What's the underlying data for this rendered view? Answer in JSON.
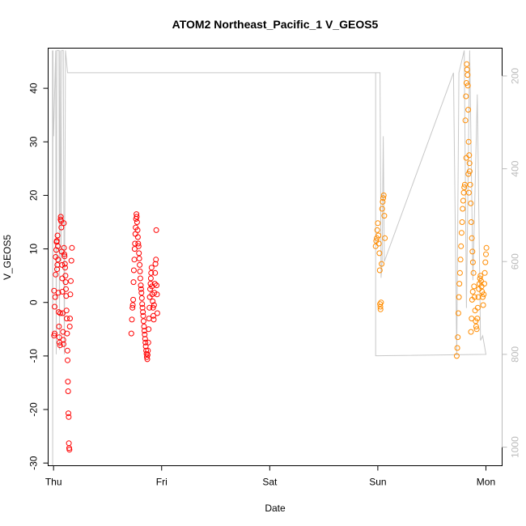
{
  "chart_data": {
    "type": "scatter",
    "title": "ATOM2 Northeast_Pacific_1 V_GEOS5",
    "xlabel": "Date",
    "ylabel": "V_GEOS5",
    "xlim": [
      -0.05,
      4.15
    ],
    "ylim": [
      -30.5,
      47.5
    ],
    "x_ticks": [
      {
        "value": 0,
        "label": "Thu"
      },
      {
        "value": 1,
        "label": "Fri"
      },
      {
        "value": 2,
        "label": "Sat"
      },
      {
        "value": 3,
        "label": "Sun"
      },
      {
        "value": 4,
        "label": "Mon"
      }
    ],
    "y_ticks": [
      -30,
      -20,
      -10,
      0,
      10,
      20,
      30,
      40
    ],
    "y2_ticks": [
      200,
      400,
      600,
      800,
      1000
    ],
    "y2lim": [
      1040,
      140
    ],
    "colors": {
      "red": "#ff0000",
      "orange": "#ff8c00",
      "line": "#c8c8c8",
      "axis2": "#bbbbbb"
    },
    "series": [
      {
        "color": "#ff0000",
        "points": [
          [
            0.005,
            2.2
          ],
          [
            0.005,
            -6.2
          ],
          [
            0.01,
            -5.8
          ],
          [
            0.01,
            -0.8
          ],
          [
            0.015,
            1.0
          ],
          [
            0.02,
            5.2
          ],
          [
            0.02,
            8.5
          ],
          [
            0.025,
            9.8
          ],
          [
            0.028,
            11.3
          ],
          [
            0.03,
            11.5
          ],
          [
            0.032,
            6.2
          ],
          [
            0.035,
            7.0
          ],
          [
            0.037,
            12.5
          ],
          [
            0.04,
            10.5
          ],
          [
            0.042,
            8.0
          ],
          [
            0.045,
            1.8
          ],
          [
            0.047,
            -1.8
          ],
          [
            0.05,
            -4.5
          ],
          [
            0.052,
            -6.5
          ],
          [
            0.055,
            -7.5
          ],
          [
            0.06,
            -8.0
          ],
          [
            0.062,
            -2.0
          ],
          [
            0.065,
            15.5
          ],
          [
            0.067,
            16.0
          ],
          [
            0.07,
            15.2
          ],
          [
            0.072,
            14.0
          ],
          [
            0.075,
            9.5
          ],
          [
            0.078,
            7.0
          ],
          [
            0.08,
            4.5
          ],
          [
            0.082,
            2.0
          ],
          [
            0.085,
            -2.0
          ],
          [
            0.087,
            -5.5
          ],
          [
            0.09,
            -7.0
          ],
          [
            0.092,
            -7.8
          ],
          [
            0.095,
            14.8
          ],
          [
            0.097,
            10.2
          ],
          [
            0.1,
            9.0
          ],
          [
            0.102,
            8.6
          ],
          [
            0.105,
            7.2
          ],
          [
            0.107,
            6.5
          ],
          [
            0.11,
            5.0
          ],
          [
            0.112,
            3.8
          ],
          [
            0.115,
            2.5
          ],
          [
            0.117,
            1.2
          ],
          [
            0.12,
            -1.5
          ],
          [
            0.122,
            -3.0
          ],
          [
            0.125,
            -5.8
          ],
          [
            0.128,
            -9.0
          ],
          [
            0.13,
            -10.8
          ],
          [
            0.133,
            -14.8
          ],
          [
            0.135,
            -16.6
          ],
          [
            0.137,
            -20.7
          ],
          [
            0.14,
            -21.4
          ],
          [
            0.142,
            -26.3
          ],
          [
            0.145,
            -27.2
          ],
          [
            0.147,
            -27.5
          ],
          [
            0.15,
            -4.5
          ],
          [
            0.152,
            -3.0
          ],
          [
            0.155,
            1.5
          ],
          [
            0.16,
            4.0
          ],
          [
            0.165,
            7.8
          ],
          [
            0.17,
            10.2
          ],
          [
            0.72,
            -5.8
          ],
          [
            0.725,
            -3.2
          ],
          [
            0.73,
            -1.0
          ],
          [
            0.733,
            -0.5
          ],
          [
            0.737,
            0.5
          ],
          [
            0.74,
            3.8
          ],
          [
            0.743,
            6.0
          ],
          [
            0.747,
            8.0
          ],
          [
            0.75,
            10.0
          ],
          [
            0.753,
            11.0
          ],
          [
            0.757,
            12.8
          ],
          [
            0.76,
            14.0
          ],
          [
            0.763,
            15.6
          ],
          [
            0.767,
            16.5
          ],
          [
            0.77,
            16.0
          ],
          [
            0.773,
            15.0
          ],
          [
            0.777,
            13.5
          ],
          [
            0.78,
            12.2
          ],
          [
            0.783,
            11.0
          ],
          [
            0.787,
            10.5
          ],
          [
            0.79,
            9.2
          ],
          [
            0.793,
            8.2
          ],
          [
            0.797,
            7.0
          ],
          [
            0.8,
            5.8
          ],
          [
            0.803,
            4.5
          ],
          [
            0.807,
            3.2
          ],
          [
            0.81,
            2.5
          ],
          [
            0.813,
            1.8
          ],
          [
            0.817,
            0.8
          ],
          [
            0.82,
            -0.3
          ],
          [
            0.823,
            -1.0
          ],
          [
            0.827,
            -1.8
          ],
          [
            0.83,
            -2.5
          ],
          [
            0.833,
            -3.5
          ],
          [
            0.837,
            -4.5
          ],
          [
            0.84,
            -5.3
          ],
          [
            0.843,
            -6.0
          ],
          [
            0.847,
            -6.8
          ],
          [
            0.85,
            -7.5
          ],
          [
            0.853,
            -8.2
          ],
          [
            0.857,
            -9.0
          ],
          [
            0.86,
            -9.6
          ],
          [
            0.863,
            -10.2
          ],
          [
            0.867,
            -10.6
          ],
          [
            0.87,
            -9.8
          ],
          [
            0.873,
            -9.0
          ],
          [
            0.877,
            -7.5
          ],
          [
            0.88,
            -5.0
          ],
          [
            0.883,
            -3.0
          ],
          [
            0.887,
            -1.0
          ],
          [
            0.89,
            1.0
          ],
          [
            0.893,
            2.5
          ],
          [
            0.897,
            3.5
          ],
          [
            0.9,
            4.5
          ],
          [
            0.903,
            5.5
          ],
          [
            0.907,
            6.5
          ],
          [
            0.91,
            3.0
          ],
          [
            0.913,
            1.5
          ],
          [
            0.917,
            0.2
          ],
          [
            0.92,
            -1.0
          ],
          [
            0.923,
            -2.5
          ],
          [
            0.927,
            -3.2
          ],
          [
            0.93,
            -0.5
          ],
          [
            0.933,
            1.8
          ],
          [
            0.937,
            3.5
          ],
          [
            0.94,
            5.5
          ],
          [
            0.943,
            7.2
          ],
          [
            0.947,
            8.0
          ],
          [
            0.95,
            13.5
          ],
          [
            0.953,
            3.2
          ],
          [
            0.957,
            1.5
          ],
          [
            0.96,
            -2.0
          ]
        ]
      },
      {
        "color": "#ff8c00",
        "points": [
          [
            2.98,
            10.5
          ],
          [
            2.985,
            11.5
          ],
          [
            2.99,
            12.0
          ],
          [
            2.995,
            13.5
          ],
          [
            3.0,
            14.8
          ],
          [
            3.005,
            12.5
          ],
          [
            3.01,
            11.0
          ],
          [
            3.015,
            9.2
          ],
          [
            3.018,
            6.0
          ],
          [
            3.02,
            -0.3
          ],
          [
            3.023,
            -0.8
          ],
          [
            3.025,
            -1.3
          ],
          [
            3.03,
            0.0
          ],
          [
            3.035,
            7.2
          ],
          [
            3.04,
            17.5
          ],
          [
            3.045,
            18.8
          ],
          [
            3.05,
            19.5
          ],
          [
            3.055,
            20.0
          ],
          [
            3.06,
            16.2
          ],
          [
            3.065,
            12.0
          ],
          [
            3.73,
            -10.0
          ],
          [
            3.735,
            -8.5
          ],
          [
            3.74,
            -6.5
          ],
          [
            3.745,
            -2.0
          ],
          [
            3.75,
            1.0
          ],
          [
            3.755,
            3.5
          ],
          [
            3.76,
            5.5
          ],
          [
            3.765,
            8.0
          ],
          [
            3.77,
            10.5
          ],
          [
            3.775,
            13.0
          ],
          [
            3.78,
            15.0
          ],
          [
            3.785,
            17.5
          ],
          [
            3.79,
            19.0
          ],
          [
            3.795,
            20.5
          ],
          [
            3.8,
            21.5
          ],
          [
            3.805,
            22.0
          ],
          [
            3.81,
            34.0
          ],
          [
            3.815,
            38.5
          ],
          [
            3.82,
            41.0
          ],
          [
            3.823,
            44.5
          ],
          [
            3.826,
            43.5
          ],
          [
            3.83,
            42.5
          ],
          [
            3.833,
            40.5
          ],
          [
            3.836,
            36.0
          ],
          [
            3.84,
            30.0
          ],
          [
            3.845,
            27.5
          ],
          [
            3.85,
            24.5
          ],
          [
            3.855,
            22.0
          ],
          [
            3.86,
            18.5
          ],
          [
            3.865,
            15.0
          ],
          [
            3.87,
            12.0
          ],
          [
            3.875,
            9.5
          ],
          [
            3.88,
            7.5
          ],
          [
            3.885,
            5.5
          ],
          [
            3.89,
            3.0
          ],
          [
            3.895,
            1.0
          ],
          [
            3.9,
            -1.5
          ],
          [
            3.905,
            -3.5
          ],
          [
            3.91,
            -4.5
          ],
          [
            3.915,
            -5.0
          ],
          [
            3.92,
            -3.0
          ],
          [
            3.925,
            -1.0
          ],
          [
            3.93,
            1.0
          ],
          [
            3.935,
            2.5
          ],
          [
            3.94,
            3.5
          ],
          [
            3.945,
            4.5
          ],
          [
            3.95,
            5.0
          ],
          [
            3.955,
            4.0
          ],
          [
            3.96,
            3.0
          ],
          [
            3.965,
            2.0
          ],
          [
            3.97,
            1.0
          ],
          [
            3.975,
            -0.5
          ],
          [
            3.98,
            1.5
          ],
          [
            3.985,
            3.5
          ],
          [
            3.99,
            5.5
          ],
          [
            3.995,
            7.5
          ],
          [
            4.0,
            9.0
          ],
          [
            4.005,
            10.2
          ],
          [
            3.818,
            27.0
          ],
          [
            3.838,
            24.0
          ],
          [
            3.842,
            20.5
          ],
          [
            3.848,
            26.0
          ],
          [
            3.862,
            -5.5
          ],
          [
            3.868,
            -3.0
          ],
          [
            3.872,
            0.5
          ],
          [
            3.878,
            2.0
          ]
        ]
      }
    ],
    "altitude_line": [
      [
        -0.01,
        145
      ],
      [
        -0.008,
        1040
      ],
      [
        -0.005,
        145
      ],
      [
        -0.003,
        320
      ],
      [
        0.0,
        330
      ],
      [
        0.02,
        145
      ],
      [
        0.025,
        800
      ],
      [
        0.03,
        145
      ],
      [
        0.05,
        145
      ],
      [
        0.055,
        790
      ],
      [
        0.06,
        145
      ],
      [
        0.07,
        600
      ],
      [
        0.075,
        145
      ],
      [
        0.09,
        145
      ],
      [
        0.1,
        800
      ],
      [
        0.11,
        145
      ],
      [
        0.13,
        193
      ],
      [
        0.6,
        193
      ],
      [
        2.9,
        193
      ],
      [
        3.02,
        193
      ],
      [
        3.03,
        635
      ],
      [
        3.04,
        600
      ],
      [
        3.05,
        330
      ],
      [
        3.06,
        600
      ],
      [
        3.7,
        193
      ],
      [
        3.73,
        800
      ],
      [
        3.75,
        193
      ],
      [
        3.8,
        145
      ],
      [
        3.82,
        700
      ],
      [
        3.85,
        145
      ],
      [
        3.88,
        640
      ],
      [
        3.92,
        240
      ],
      [
        3.95,
        770
      ],
      [
        3.97,
        760
      ],
      [
        4.0,
        800
      ],
      [
        3.0,
        803
      ],
      [
        2.98,
        803
      ],
      [
        2.98,
        193
      ],
      [
        0.13,
        193
      ]
    ]
  }
}
